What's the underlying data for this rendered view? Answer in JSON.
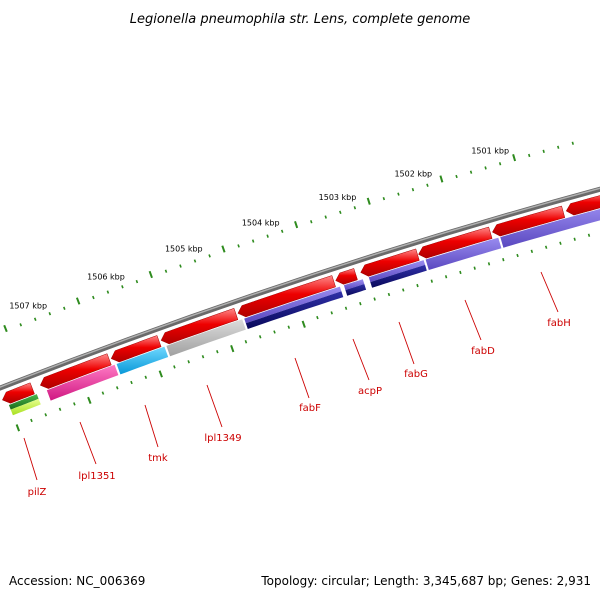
{
  "title": "Legionella pneumophila str. Lens, complete genome",
  "footer": {
    "accession_label": "Accession: NC_006369",
    "topology_label": "Topology: circular; Length: 3,345,687 bp; Genes: 2,931"
  },
  "ticks": [
    {
      "label": "1501 kbp"
    },
    {
      "label": "1502 kbp"
    },
    {
      "label": "1503 kbp"
    },
    {
      "label": "1504 kbp"
    },
    {
      "label": "1505 kbp"
    },
    {
      "label": "1506 kbp"
    },
    {
      "label": "1507 kbp"
    }
  ],
  "genes": [
    {
      "name": "fabH"
    },
    {
      "name": "fabD"
    },
    {
      "name": "fabG"
    },
    {
      "name": "acpP"
    },
    {
      "name": "fabF"
    },
    {
      "name": "lpl1349"
    },
    {
      "name": "tmk"
    },
    {
      "name": "lpl1351"
    },
    {
      "name": "pilZ"
    }
  ],
  "colors": {
    "backbone": "#7a7a7a",
    "gene_arrow": "#ee0000",
    "tick": "#2e8b1e",
    "label": "#cc0000",
    "cog_purple": "#6a5acd",
    "cog_navy": "#10107a",
    "cog_grey": "#b8b8b8",
    "cog_cyan": "#10b4f0",
    "cog_magenta": "#ee2a9a",
    "cog_green": "#2c8a2c",
    "cog_yellowgreen": "#c8ff3c"
  }
}
